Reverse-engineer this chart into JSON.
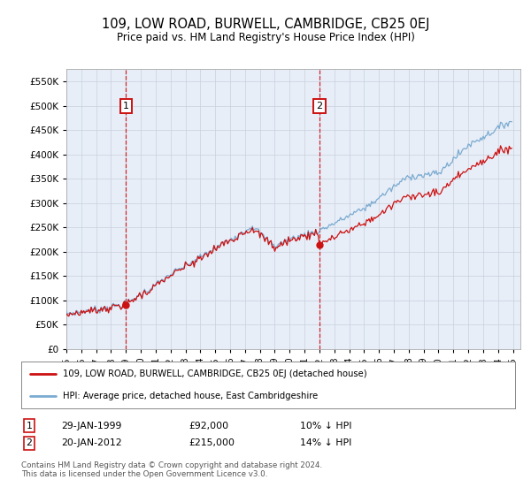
{
  "title": "109, LOW ROAD, BURWELL, CAMBRIDGE, CB25 0EJ",
  "subtitle": "Price paid vs. HM Land Registry's House Price Index (HPI)",
  "legend_line1": "109, LOW ROAD, BURWELL, CAMBRIDGE, CB25 0EJ (detached house)",
  "legend_line2": "HPI: Average price, detached house, East Cambridgeshire",
  "annotation1_date": "29-JAN-1999",
  "annotation1_price": 92000,
  "annotation1_hpi": "10% ↓ HPI",
  "annotation2_date": "20-JAN-2012",
  "annotation2_price": 215000,
  "annotation2_hpi": "14% ↓ HPI",
  "footnote": "Contains HM Land Registry data © Crown copyright and database right 2024.\nThis data is licensed under the Open Government Licence v3.0.",
  "hpi_color": "#7aaad0",
  "price_color": "#cc1111",
  "annotation_box_color": "#cc1111",
  "dashed_line_color": "#cc1111",
  "background_color": "#e8eef8",
  "grid_color": "#c8d0dc",
  "ylim": [
    0,
    575000
  ],
  "yticks": [
    0,
    50000,
    100000,
    150000,
    200000,
    250000,
    300000,
    350000,
    400000,
    450000,
    500000,
    550000
  ]
}
